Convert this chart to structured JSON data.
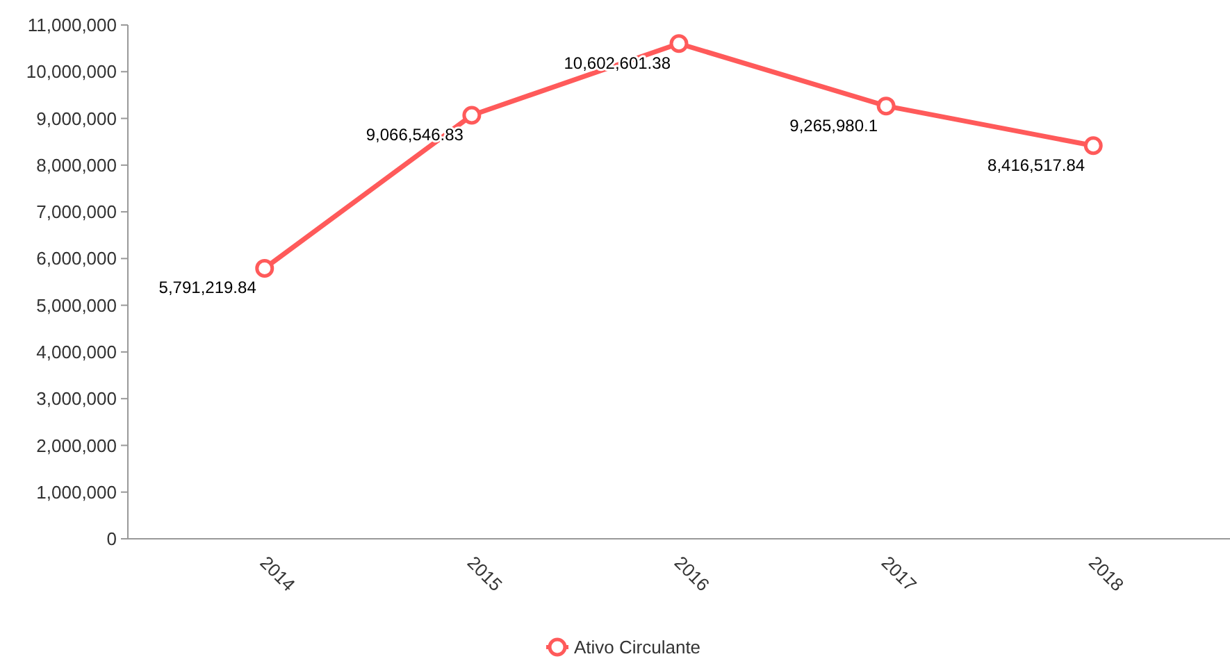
{
  "chart_data": {
    "type": "line",
    "categories": [
      "2014",
      "2015",
      "2016",
      "2017",
      "2018"
    ],
    "series": [
      {
        "name": "Ativo Circulante",
        "color": "#ff5a5a",
        "values": [
          5791219.84,
          9066546.83,
          10602601.38,
          9265980.1,
          8416517.84
        ],
        "value_labels": [
          "5,791,219.84",
          "9,066,546.83",
          "10,602,601.38",
          "9,265,980.1",
          "8,416,517.84"
        ]
      }
    ],
    "ylim": [
      0,
      11000000
    ],
    "yticks": [
      {
        "value": 0,
        "label": "0"
      },
      {
        "value": 1000000,
        "label": "1,000,000"
      },
      {
        "value": 2000000,
        "label": "2,000,000"
      },
      {
        "value": 3000000,
        "label": "3,000,000"
      },
      {
        "value": 4000000,
        "label": "4,000,000"
      },
      {
        "value": 5000000,
        "label": "5,000,000"
      },
      {
        "value": 6000000,
        "label": "6,000,000"
      },
      {
        "value": 7000000,
        "label": "7,000,000"
      },
      {
        "value": 8000000,
        "label": "8,000,000"
      },
      {
        "value": 9000000,
        "label": "9,000,000"
      },
      {
        "value": 10000000,
        "label": "10,000,000"
      },
      {
        "value": 11000000,
        "label": "11,000,000"
      }
    ],
    "legend": "bottom",
    "marker": "circle",
    "line_style": "solid",
    "grid": false
  }
}
